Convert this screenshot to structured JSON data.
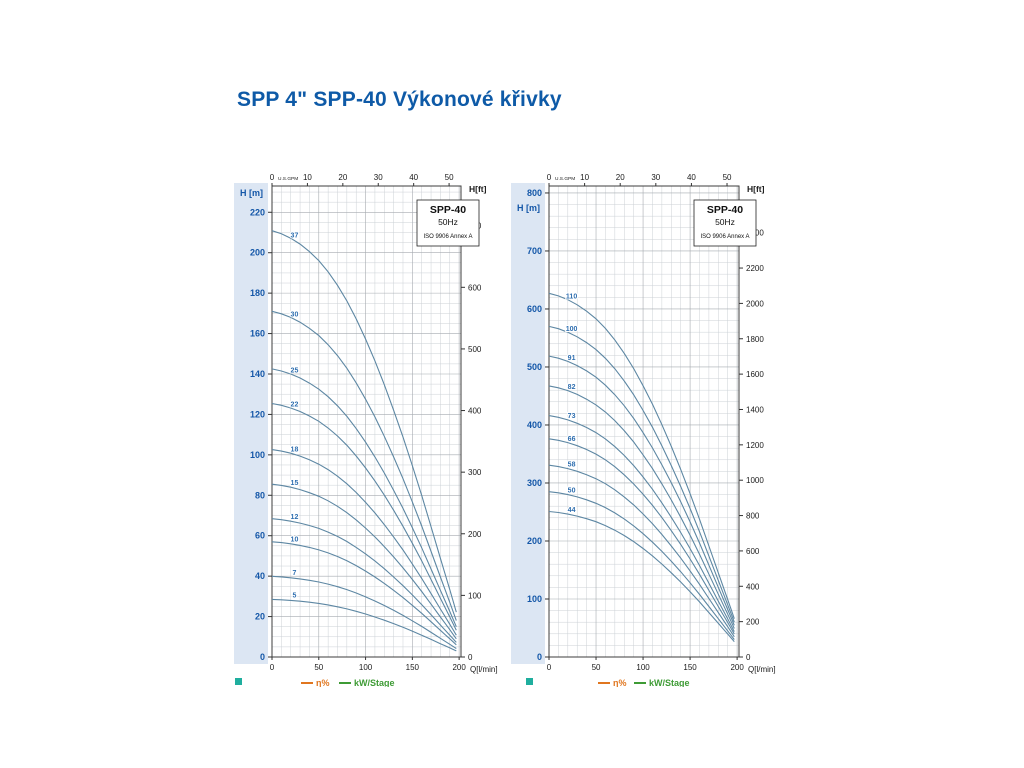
{
  "page": {
    "title": "SPP 4\" SPP-40 Výkonové křivky",
    "title_color": "#0e5aa7"
  },
  "chart_data": [
    {
      "type": "line",
      "id": "left",
      "info_box": {
        "model": "SPP-40",
        "frequency": "50Hz",
        "standard": "ISO 9906 Annex A"
      },
      "axes": {
        "top_label": "U.S.GPM",
        "bottom_label": "Q[l/min]",
        "left_label": "H [m]",
        "right_label": "H[ft]",
        "top_ticks_gpm": [
          0,
          10,
          20,
          30,
          40,
          50
        ],
        "bottom_ticks_lmin": [
          0,
          50,
          100,
          150,
          200
        ],
        "left_ticks_m": [
          0,
          20,
          40,
          60,
          80,
          100,
          120,
          140,
          160,
          180,
          200,
          220
        ],
        "right_ticks_ft": [
          0,
          100,
          200,
          300,
          400,
          500,
          600,
          700
        ],
        "xlim_lmin": [
          0,
          202
        ],
        "ylim_m": [
          0,
          233
        ],
        "grid": true
      },
      "per_stage_curve": {
        "q_lmin": [
          0,
          10,
          20,
          30,
          40,
          50,
          60,
          70,
          80,
          90,
          100,
          110,
          120,
          130,
          140,
          150,
          160,
          170,
          180,
          185,
          190,
          194,
          197
        ],
        "h_m": [
          5.7,
          5.66,
          5.6,
          5.52,
          5.42,
          5.3,
          5.15,
          4.97,
          4.76,
          4.52,
          4.25,
          3.96,
          3.64,
          3.3,
          2.94,
          2.56,
          2.16,
          1.74,
          1.32,
          1.11,
          0.9,
          0.73,
          0.6
        ]
      },
      "curves": [
        {
          "label": "37",
          "stages": 37
        },
        {
          "label": "30",
          "stages": 30
        },
        {
          "label": "25",
          "stages": 25
        },
        {
          "label": "22",
          "stages": 22
        },
        {
          "label": "18",
          "stages": 18
        },
        {
          "label": "15",
          "stages": 15
        },
        {
          "label": "12",
          "stages": 12
        },
        {
          "label": "10",
          "stages": 10
        },
        {
          "label": "7",
          "stages": 7
        },
        {
          "label": "5",
          "stages": 5
        }
      ],
      "legend": [
        {
          "type": "swatch",
          "color": "#1fae9e",
          "label": ""
        },
        {
          "type": "line",
          "color": "#e0761f",
          "label": "η%"
        },
        {
          "type": "line",
          "color": "#3e9b35",
          "label": "kW/Stage"
        }
      ],
      "colors": {
        "curve": "#5d87a3",
        "curve_label": "#2f6fb0",
        "axis_left_text": "#1457a8",
        "band": "#dce6f3",
        "grid_minor": "#ccd1d6",
        "grid_major": "#a6abb0",
        "border": "#3c3c3c",
        "tick_text": "#1a1a1a"
      }
    },
    {
      "type": "line",
      "id": "right",
      "info_box": {
        "model": "SPP-40",
        "frequency": "50Hz",
        "standard": "ISO 9906 Annex A"
      },
      "axes": {
        "top_label": "U.S.GPM",
        "bottom_label": "Q[l/min]",
        "left_label": "H [m]",
        "right_label": "H[ft]",
        "top_ticks_gpm": [
          0,
          10,
          20,
          30,
          40,
          50
        ],
        "bottom_ticks_lmin": [
          0,
          50,
          100,
          150,
          200
        ],
        "left_ticks_m": [
          0,
          100,
          200,
          300,
          400,
          500,
          600,
          700,
          800
        ],
        "right_ticks_ft": [
          0,
          200,
          400,
          600,
          800,
          1000,
          1200,
          1400,
          1600,
          1800,
          2000,
          2200,
          2400
        ],
        "xlim_lmin": [
          0,
          202
        ],
        "ylim_m": [
          0,
          812
        ],
        "grid": true
      },
      "per_stage_curve": {
        "q_lmin": [
          0,
          10,
          20,
          30,
          40,
          50,
          60,
          70,
          80,
          90,
          100,
          110,
          120,
          130,
          140,
          150,
          160,
          170,
          180,
          185,
          190,
          194,
          197
        ],
        "h_m": [
          5.7,
          5.66,
          5.6,
          5.52,
          5.42,
          5.3,
          5.15,
          4.97,
          4.76,
          4.52,
          4.25,
          3.96,
          3.64,
          3.3,
          2.94,
          2.56,
          2.16,
          1.74,
          1.32,
          1.11,
          0.9,
          0.73,
          0.6
        ]
      },
      "curves": [
        {
          "label": "110",
          "stages": 110
        },
        {
          "label": "100",
          "stages": 100
        },
        {
          "label": "91",
          "stages": 91
        },
        {
          "label": "82",
          "stages": 82
        },
        {
          "label": "73",
          "stages": 73
        },
        {
          "label": "66",
          "stages": 66
        },
        {
          "label": "58",
          "stages": 58
        },
        {
          "label": "50",
          "stages": 50
        },
        {
          "label": "44",
          "stages": 44
        }
      ],
      "legend": [
        {
          "type": "swatch",
          "color": "#1fae9e",
          "label": ""
        },
        {
          "type": "line",
          "color": "#e0761f",
          "label": "η%"
        },
        {
          "type": "line",
          "color": "#3e9b35",
          "label": "kW/Stage"
        }
      ],
      "colors": {
        "curve": "#5d87a3",
        "curve_label": "#2f6fb0",
        "axis_left_text": "#1457a8",
        "band": "#dce6f3",
        "grid_minor": "#ccd1d6",
        "grid_major": "#a6abb0",
        "border": "#3c3c3c",
        "tick_text": "#1a1a1a"
      }
    }
  ]
}
